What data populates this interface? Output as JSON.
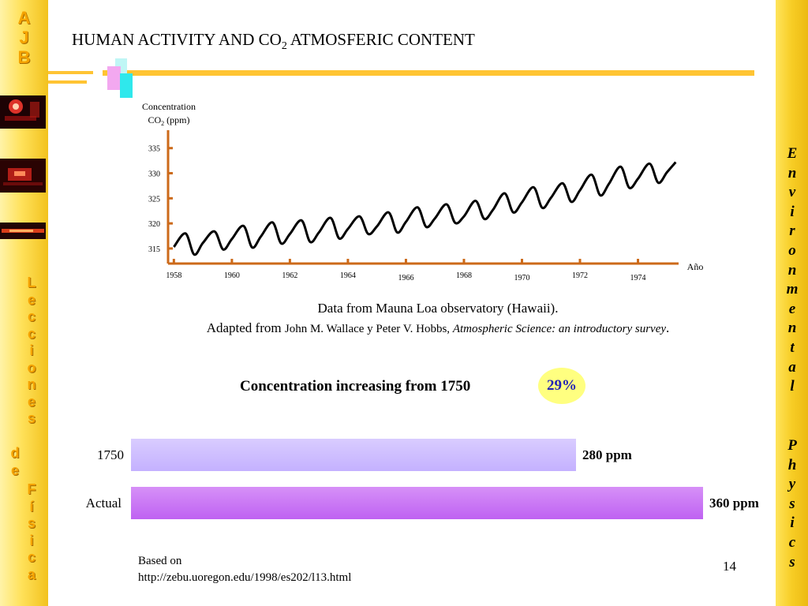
{
  "sidebar": {
    "logo_letters": [
      "A",
      "J",
      "B"
    ],
    "vertical_text_left_1": [
      "L",
      "e",
      "c",
      "c",
      "i",
      "o",
      "n",
      "e",
      "s"
    ],
    "vertical_text_left_2": [
      "d",
      "e"
    ],
    "vertical_text_left_3": [
      "F",
      "í",
      "s",
      "i",
      "c",
      "a"
    ]
  },
  "right_bar": {
    "vertical_text_1": [
      "E",
      "n",
      "v",
      "i",
      "r",
      "o",
      "n",
      "m",
      "e",
      "n",
      "t",
      "a",
      "l"
    ],
    "vertical_text_2": [
      "P",
      "h",
      "y",
      "s",
      "i",
      "c",
      "s"
    ]
  },
  "title": {
    "main_before": "HUMAN ACTIVITY AND CO",
    "subscript": "2",
    "main_after": " ATMOSFERIC CONTENT"
  },
  "colors": {
    "axis": "#cc6a1a",
    "curve": "#000000",
    "bar_1750": "#c9b8ff",
    "bar_actual": "#c370f3",
    "badge": "#ffff80",
    "badge_text": "#2323b5",
    "deco": "#ffc433"
  },
  "chart_data": {
    "type": "line",
    "ylabel_line1": "Concentration",
    "ylabel_line2_prefix": "CO",
    "ylabel_line2_sub": "2",
    "ylabel_line2_suffix": " (ppm)",
    "xlabel": "Año",
    "yticks": [
      315,
      320,
      325,
      330,
      335
    ],
    "xticks": [
      1958,
      1960,
      1962,
      1964,
      1966,
      1968,
      1970,
      1972,
      1974
    ],
    "ylim": [
      312,
      337
    ],
    "xlim": [
      1957.8,
      1975.4
    ],
    "series": [
      {
        "x": [
          1958.0,
          1958.4,
          1958.7,
          1959.0,
          1959.4,
          1959.7,
          1960.0,
          1960.4,
          1960.7,
          1961.0,
          1961.4,
          1961.7,
          1962.0,
          1962.4,
          1962.7,
          1963.0,
          1963.4,
          1963.7,
          1964.0,
          1964.4,
          1964.7,
          1965.0,
          1965.4,
          1965.7,
          1966.0,
          1966.4,
          1966.7,
          1967.0,
          1967.4,
          1967.7,
          1968.0,
          1968.4,
          1968.7,
          1969.0,
          1969.4,
          1969.7,
          1970.0,
          1970.4,
          1970.7,
          1971.0,
          1971.4,
          1971.7,
          1972.0,
          1972.4,
          1972.7,
          1973.0,
          1973.4,
          1973.7,
          1974.0,
          1974.4,
          1974.7,
          1975.0,
          1975.3
        ],
        "y": [
          315.3,
          318.0,
          313.8,
          316.1,
          318.4,
          314.8,
          316.9,
          319.5,
          315.2,
          317.4,
          320.2,
          316.0,
          317.9,
          320.6,
          316.3,
          318.2,
          321.1,
          317.0,
          318.9,
          321.4,
          317.9,
          319.4,
          322.2,
          318.2,
          320.3,
          323.2,
          319.3,
          321.0,
          323.8,
          320.1,
          321.4,
          324.5,
          320.9,
          322.7,
          326.0,
          322.2,
          324.2,
          327.2,
          323.1,
          325.1,
          328.0,
          324.3,
          326.6,
          329.7,
          325.6,
          327.9,
          331.3,
          327.1,
          328.9,
          331.9,
          328.1,
          330.2,
          332.2
        ]
      }
    ]
  },
  "caption": {
    "line1": "Data from Mauna Loa observatory (Hawaii).",
    "prefix": "Adapted from ",
    "authors": "John M. Wallace y Peter V. Hobbs, ",
    "book": "Atmospheric Science: an introductory survey",
    "suffix": "."
  },
  "comparison": {
    "headline": "Concentration increasing from  1750",
    "percent": "29%",
    "bars": [
      {
        "label": "1750",
        "value": 280,
        "value_text": "280 ppm"
      },
      {
        "label": "Actual",
        "value": 360,
        "value_text": "360 ppm"
      }
    ],
    "max_value": 360
  },
  "footer": {
    "source_line1": "Based on",
    "source_line2": "http://zebu.uoregon.edu/1998/es202/l13.html",
    "page_number": "14"
  }
}
